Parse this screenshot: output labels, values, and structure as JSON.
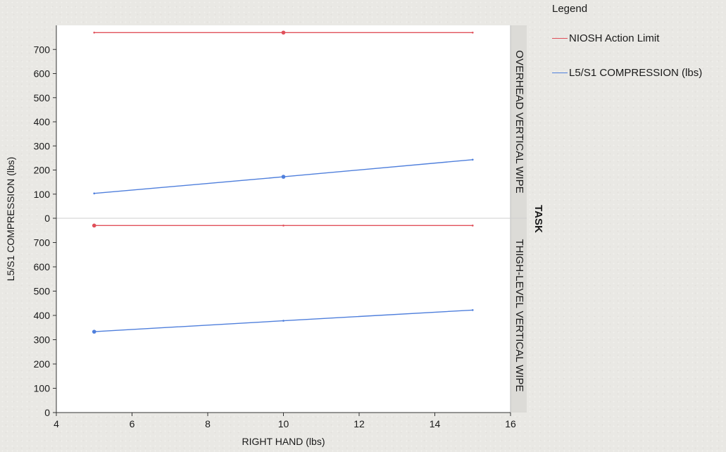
{
  "chart_data": {
    "type": "line",
    "title": "",
    "xlabel": "RIGHT HAND (lbs)",
    "ylabel": "L5/S1 COMPRESSION (lbs)",
    "xlim": [
      4,
      16
    ],
    "xticks": [
      "4",
      "6",
      "8",
      "10",
      "12",
      "14",
      "16"
    ],
    "ylim": [
      0,
      800
    ],
    "yticks": [
      "0",
      "100",
      "200",
      "300",
      "400",
      "500",
      "600",
      "700"
    ],
    "facet_label": "TASK",
    "grid": false,
    "legend_position": "top-right",
    "legend_title": "Legend",
    "colors": {
      "niosh": "#e0505a",
      "compression": "#4f7fdc"
    },
    "panels": [
      {
        "name": "OVERHEAD VERTICAL WIPE",
        "series": [
          {
            "name": "NIOSH Action Limit",
            "color": "#e0505a",
            "x": [
              5,
              10,
              15
            ],
            "y": [
              770,
              770,
              770
            ],
            "highlight_index": 1
          },
          {
            "name": "L5/S1 COMPRESSION (lbs)",
            "color": "#4f7fdc",
            "x": [
              5,
              10,
              15
            ],
            "y": [
              103,
              172,
              243
            ],
            "highlight_index": 1
          }
        ]
      },
      {
        "name": "THIGH-LEVEL VERTICAL WIPE",
        "series": [
          {
            "name": "NIOSH Action Limit",
            "color": "#e0505a",
            "x": [
              5,
              10,
              15
            ],
            "y": [
              770,
              770,
              770
            ],
            "highlight_index": 0
          },
          {
            "name": "L5/S1 COMPRESSION (lbs)",
            "color": "#4f7fdc",
            "x": [
              5,
              10,
              15
            ],
            "y": [
              333,
              378,
              422
            ],
            "highlight_index": 0
          }
        ]
      }
    ]
  }
}
